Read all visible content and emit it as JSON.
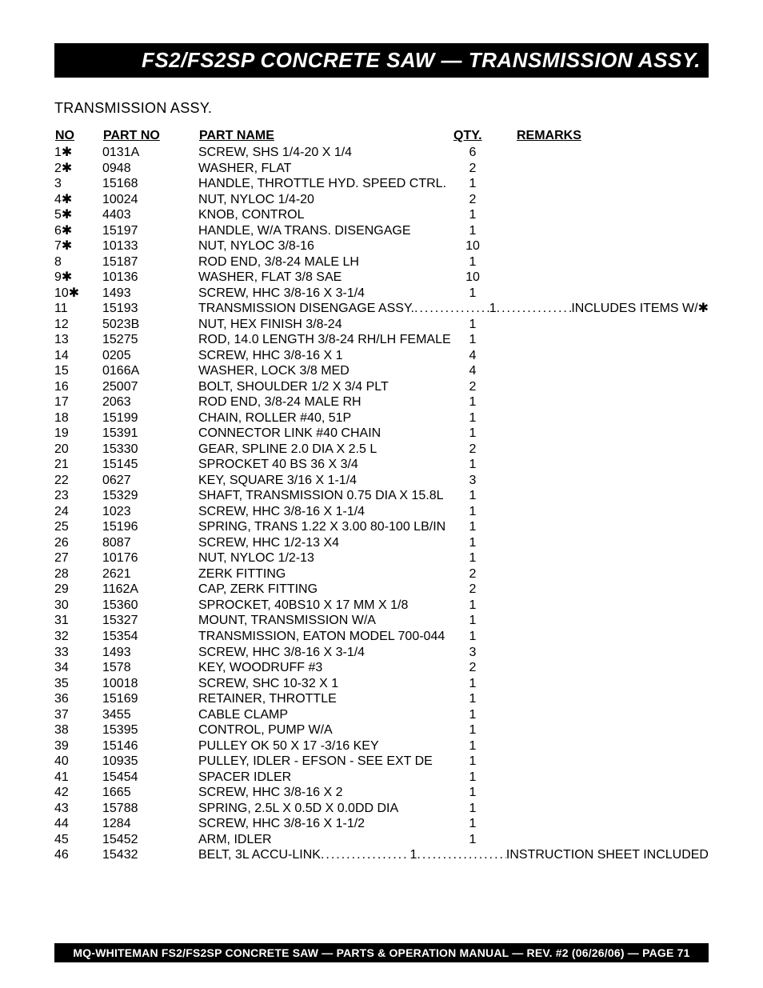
{
  "header": {
    "title": "FS2/FS2SP CONCRETE SAW — TRANSMISSION ASSY."
  },
  "section_label": "TRANSMISSION ASSY.",
  "columns": {
    "no": "NO",
    "part_no": "PART NO",
    "part_name": "PART NAME",
    "qty": "QTY.",
    "remarks": "REMARKS"
  },
  "rows": [
    {
      "no": "1",
      "star": true,
      "part_no": "0131A",
      "name": "SCREW, SHS 1/4-20 X 1/4",
      "qty": "6",
      "remarks": "",
      "leader": false
    },
    {
      "no": "2",
      "star": true,
      "part_no": "0948",
      "name": "WASHER, FLAT",
      "qty": "2",
      "remarks": "",
      "leader": false
    },
    {
      "no": "3",
      "star": false,
      "part_no": "15168",
      "name": "HANDLE, THROTTLE HYD. SPEED CTRL.",
      "qty": "1",
      "remarks": "",
      "leader": false
    },
    {
      "no": "4",
      "star": true,
      "part_no": "10024",
      "name": "NUT, NYLOC 1/4-20",
      "qty": "2",
      "remarks": "",
      "leader": false
    },
    {
      "no": "5",
      "star": true,
      "part_no": "4403",
      "name": "KNOB, CONTROL",
      "qty": "1",
      "remarks": "",
      "leader": false
    },
    {
      "no": "6",
      "star": true,
      "part_no": "15197",
      "name": "HANDLE, W/A TRANS. DISENGAGE",
      "qty": "1",
      "remarks": "",
      "leader": false
    },
    {
      "no": "7",
      "star": true,
      "part_no": "10133",
      "name": "NUT, NYLOC 3/8-16",
      "qty": "10",
      "remarks": "",
      "leader": false
    },
    {
      "no": "8",
      "star": false,
      "part_no": "15187",
      "name": "ROD END, 3/8-24 MALE LH",
      "qty": "1",
      "remarks": "",
      "leader": false
    },
    {
      "no": "9",
      "star": true,
      "part_no": "10136",
      "name": "WASHER, FLAT 3/8 SAE",
      "qty": "10",
      "remarks": "",
      "leader": false
    },
    {
      "no": "10",
      "star": true,
      "part_no": "1493",
      "name": "SCREW, HHC 3/8-16 X 3-1/4",
      "qty": "1",
      "remarks": "",
      "leader": false
    },
    {
      "no": "11",
      "star": false,
      "part_no": "15193",
      "name": "TRANSMISSION DISENGAGE ASSY.",
      "qty": "1",
      "remarks": "INCLUDES ITEMS W/✱",
      "leader": true
    },
    {
      "no": "12",
      "star": false,
      "part_no": "5023B",
      "name": "NUT, HEX FINISH 3/8-24",
      "qty": "1",
      "remarks": "",
      "leader": false
    },
    {
      "no": "13",
      "star": false,
      "part_no": "15275",
      "name": "ROD, 14.0 LENGTH 3/8-24 RH/LH FEMALE",
      "qty": "1",
      "remarks": "",
      "leader": false
    },
    {
      "no": "14",
      "star": false,
      "part_no": "0205",
      "name": "SCREW, HHC 3/8-16 X 1",
      "qty": "4",
      "remarks": "",
      "leader": false
    },
    {
      "no": "15",
      "star": false,
      "part_no": "0166A",
      "name": "WASHER, LOCK 3/8 MED",
      "qty": "4",
      "remarks": "",
      "leader": false
    },
    {
      "no": "16",
      "star": false,
      "part_no": "25007",
      "name": "BOLT, SHOULDER 1/2 X 3/4 PLT",
      "qty": "2",
      "remarks": "",
      "leader": false
    },
    {
      "no": "17",
      "star": false,
      "part_no": "2063",
      "name": "ROD END, 3/8-24 MALE RH",
      "qty": "1",
      "remarks": "",
      "leader": false
    },
    {
      "no": "18",
      "star": false,
      "part_no": "15199",
      "name": "CHAIN, ROLLER #40, 51P",
      "qty": "1",
      "remarks": "",
      "leader": false
    },
    {
      "no": "19",
      "star": false,
      "part_no": "15391",
      "name": "CONNECTOR LINK #40 CHAIN",
      "qty": "1",
      "remarks": "",
      "leader": false
    },
    {
      "no": "20",
      "star": false,
      "part_no": "15330",
      "name": "GEAR, SPLINE 2.0 DIA X 2.5 L",
      "qty": "2",
      "remarks": "",
      "leader": false
    },
    {
      "no": "21",
      "star": false,
      "part_no": "15145",
      "name": "SPROCKET 40 BS 36 X 3/4",
      "qty": "1",
      "remarks": "",
      "leader": false
    },
    {
      "no": "22",
      "star": false,
      "part_no": "0627",
      "name": "KEY, SQUARE 3/16 X 1-1/4",
      "qty": "3",
      "remarks": "",
      "leader": false
    },
    {
      "no": "23",
      "star": false,
      "part_no": "15329",
      "name": "SHAFT, TRANSMISSION 0.75 DIA X 15.8L",
      "qty": "1",
      "remarks": "",
      "leader": false
    },
    {
      "no": "24",
      "star": false,
      "part_no": "1023",
      "name": "SCREW, HHC 3/8-16 X 1-1/4",
      "qty": "1",
      "remarks": "",
      "leader": false
    },
    {
      "no": "25",
      "star": false,
      "part_no": "15196",
      "name": "SPRING, TRANS 1.22 X 3.00 80-100 LB/IN",
      "qty": "1",
      "remarks": "",
      "leader": false
    },
    {
      "no": "26",
      "star": false,
      "part_no": "8087",
      "name": "SCREW, HHC 1/2-13 X4",
      "qty": "1",
      "remarks": "",
      "leader": false
    },
    {
      "no": "27",
      "star": false,
      "part_no": "10176",
      "name": "NUT, NYLOC 1/2-13",
      "qty": "1",
      "remarks": "",
      "leader": false
    },
    {
      "no": "28",
      "star": false,
      "part_no": "2621",
      "name": "ZERK FITTING",
      "qty": "2",
      "remarks": "",
      "leader": false
    },
    {
      "no": "29",
      "star": false,
      "part_no": "1162A",
      "name": "CAP, ZERK FITTING",
      "qty": "2",
      "remarks": "",
      "leader": false
    },
    {
      "no": "30",
      "star": false,
      "part_no": "15360",
      "name": "SPROCKET, 40BS10 X 17 MM X 1/8",
      "qty": "1",
      "remarks": "",
      "leader": false
    },
    {
      "no": "31",
      "star": false,
      "part_no": "15327",
      "name": "MOUNT, TRANSMISSION W/A",
      "qty": "1",
      "remarks": "",
      "leader": false
    },
    {
      "no": "32",
      "star": false,
      "part_no": "15354",
      "name": "TRANSMISSION, EATON MODEL 700-044",
      "qty": "1",
      "remarks": "",
      "leader": false
    },
    {
      "no": "33",
      "star": false,
      "part_no": "1493",
      "name": "SCREW, HHC 3/8-16 X 3-1/4",
      "qty": "3",
      "remarks": "",
      "leader": false
    },
    {
      "no": "34",
      "star": false,
      "part_no": "1578",
      "name": "KEY, WOODRUFF #3",
      "qty": "2",
      "remarks": "",
      "leader": false
    },
    {
      "no": "35",
      "star": false,
      "part_no": "10018",
      "name": "SCREW, SHC 10-32 X 1",
      "qty": "1",
      "remarks": "",
      "leader": false
    },
    {
      "no": "36",
      "star": false,
      "part_no": "15169",
      "name": "RETAINER, THROTTLE",
      "qty": "1",
      "remarks": "",
      "leader": false
    },
    {
      "no": "37",
      "star": false,
      "part_no": "3455",
      "name": "CABLE CLAMP",
      "qty": "1",
      "remarks": "",
      "leader": false
    },
    {
      "no": "38",
      "star": false,
      "part_no": "15395",
      "name": "CONTROL, PUMP W/A",
      "qty": "1",
      "remarks": "",
      "leader": false
    },
    {
      "no": "39",
      "star": false,
      "part_no": "15146",
      "name": "PULLEY OK 50 X 17 -3/16 KEY",
      "qty": "1",
      "remarks": "",
      "leader": false
    },
    {
      "no": "40",
      "star": false,
      "part_no": "10935",
      "name": "PULLEY, IDLER - EFSON - SEE EXT DE",
      "qty": "1",
      "remarks": "",
      "leader": false
    },
    {
      "no": "41",
      "star": false,
      "part_no": "15454",
      "name": "SPACER IDLER",
      "qty": "1",
      "remarks": "",
      "leader": false
    },
    {
      "no": "42",
      "star": false,
      "part_no": "1665",
      "name": "SCREW, HHC 3/8-16 X 2",
      "qty": "1",
      "remarks": "",
      "leader": false
    },
    {
      "no": "43",
      "star": false,
      "part_no": "15788",
      "name": "SPRING, 2.5L X 0.5D X 0.0DD DIA",
      "qty": "1",
      "remarks": "",
      "leader": false
    },
    {
      "no": "44",
      "star": false,
      "part_no": "1284",
      "name": "SCREW, HHC 3/8-16 X 1-1/2",
      "qty": "1",
      "remarks": "",
      "leader": false
    },
    {
      "no": "45",
      "star": false,
      "part_no": "15452",
      "name": "ARM, IDLER",
      "qty": "1",
      "remarks": "",
      "leader": false
    },
    {
      "no": "46",
      "star": false,
      "part_no": "15432",
      "name": "BELT, 3L ACCU-LINK",
      "qty": "1",
      "remarks": "INSTRUCTION SHEET INCLUDED",
      "leader": true
    }
  ],
  "footer": "MQ-WHITEMAN  FS2/FS2SP  CONCRETE SAW — PARTS & OPERATION MANUAL — REV. #2  (06/26/06) — PAGE 71",
  "colors": {
    "page_bg": "#ffffff",
    "bar_bg": "#000000",
    "bar_fg": "#ffffff",
    "text": "#000000"
  },
  "typography": {
    "title_fontsize": 26,
    "body_fontsize": 16,
    "footer_fontsize": 14,
    "section_fontsize": 18
  }
}
